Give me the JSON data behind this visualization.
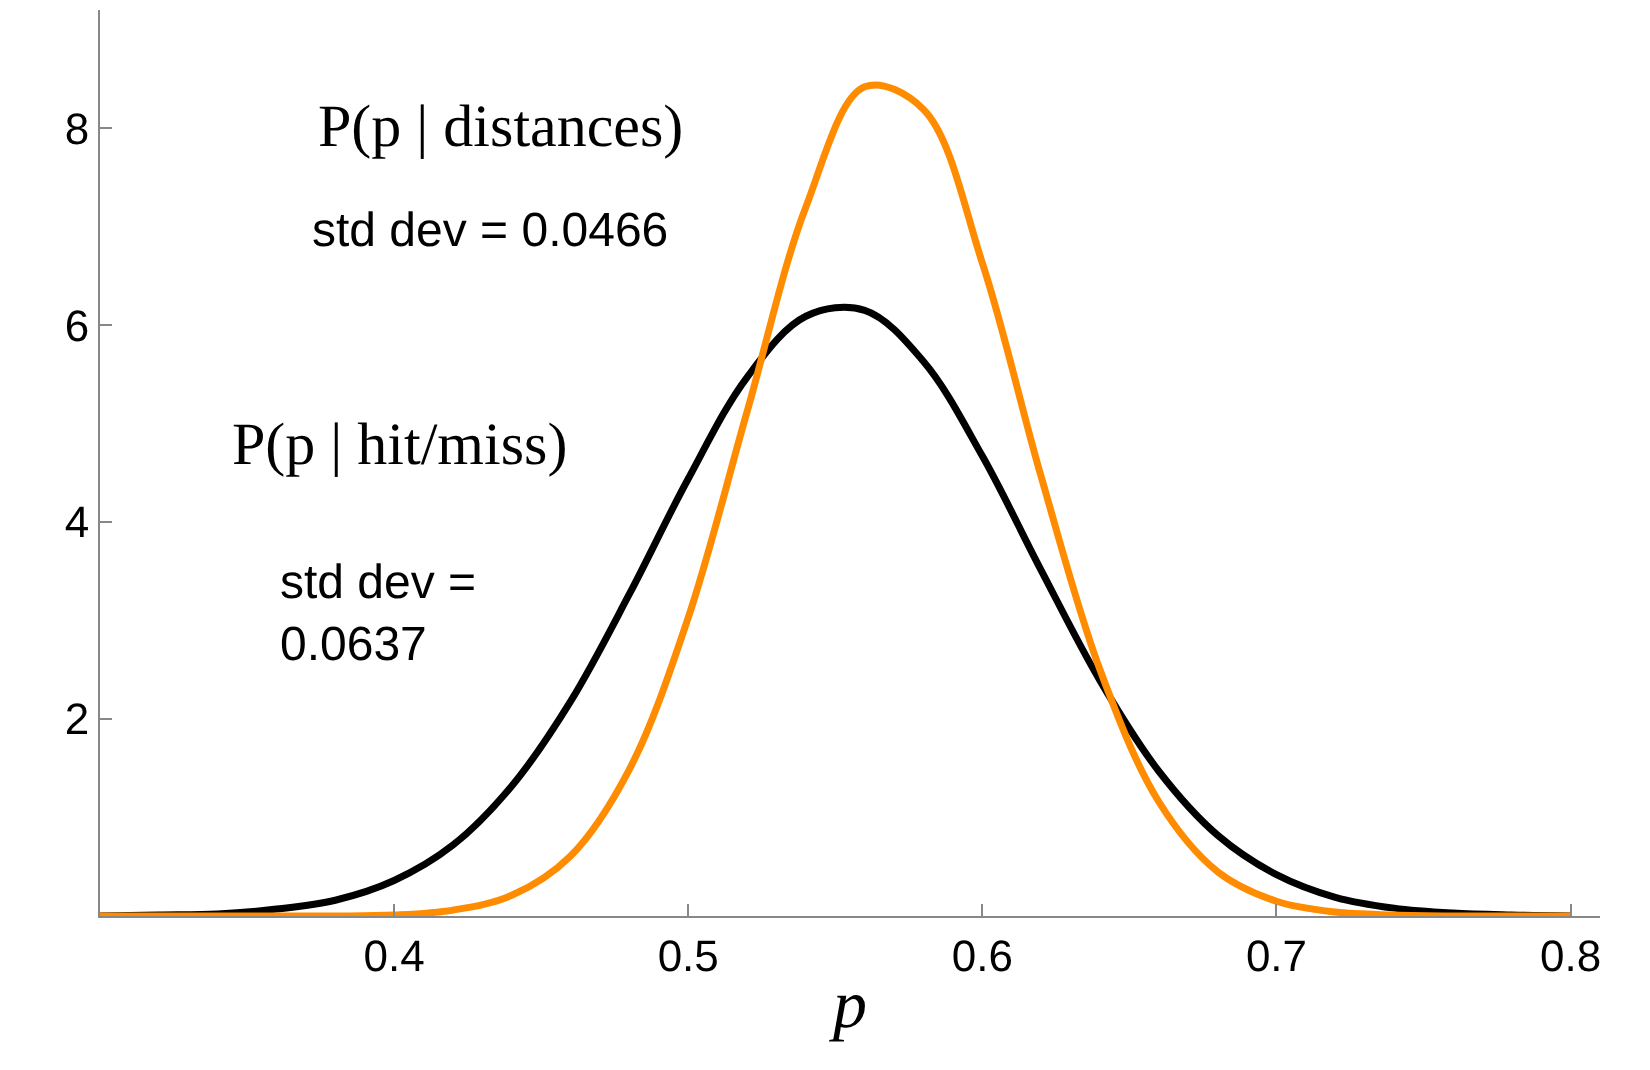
{
  "chart_data": {
    "type": "line",
    "xlabel": "p",
    "x": [
      0.3,
      0.32,
      0.34,
      0.36,
      0.38,
      0.4,
      0.42,
      0.44,
      0.46,
      0.48,
      0.5,
      0.52,
      0.54,
      0.56,
      0.58,
      0.6,
      0.62,
      0.64,
      0.66,
      0.68,
      0.7,
      0.72,
      0.74,
      0.76,
      0.78,
      0.8
    ],
    "series": [
      {
        "color": "#000000",
        "values": [
          0,
          0.01,
          0.02,
          0.07,
          0.16,
          0.36,
          0.72,
          1.32,
          2.18,
          3.27,
          4.44,
          5.47,
          6.09,
          6.15,
          5.63,
          4.67,
          3.51,
          2.39,
          1.47,
          0.82,
          0.42,
          0.19,
          0.08,
          0.03,
          0.01,
          0
        ]
      },
      {
        "color": "#ff8c00",
        "values": [
          0,
          0,
          0,
          0,
          0,
          0.01,
          0.06,
          0.21,
          0.61,
          1.49,
          3.03,
          5.12,
          7.2,
          8.42,
          8.19,
          6.63,
          4.46,
          2.5,
          1.16,
          0.45,
          0.15,
          0.04,
          0.01,
          0,
          0,
          0
        ]
      }
    ],
    "annotations": [
      "P(p | distances)",
      "std dev = 0.0466",
      "P(p | hit/miss)",
      "std dev =\n0.0637"
    ],
    "xlim": [
      0.3,
      0.81
    ],
    "ylim": [
      0,
      9.2
    ],
    "xticks": [
      0.4,
      0.5,
      0.6,
      0.7,
      0.8
    ],
    "yticks": [
      2,
      4,
      6,
      8
    ],
    "marker": "none",
    "line_style": "solid"
  }
}
